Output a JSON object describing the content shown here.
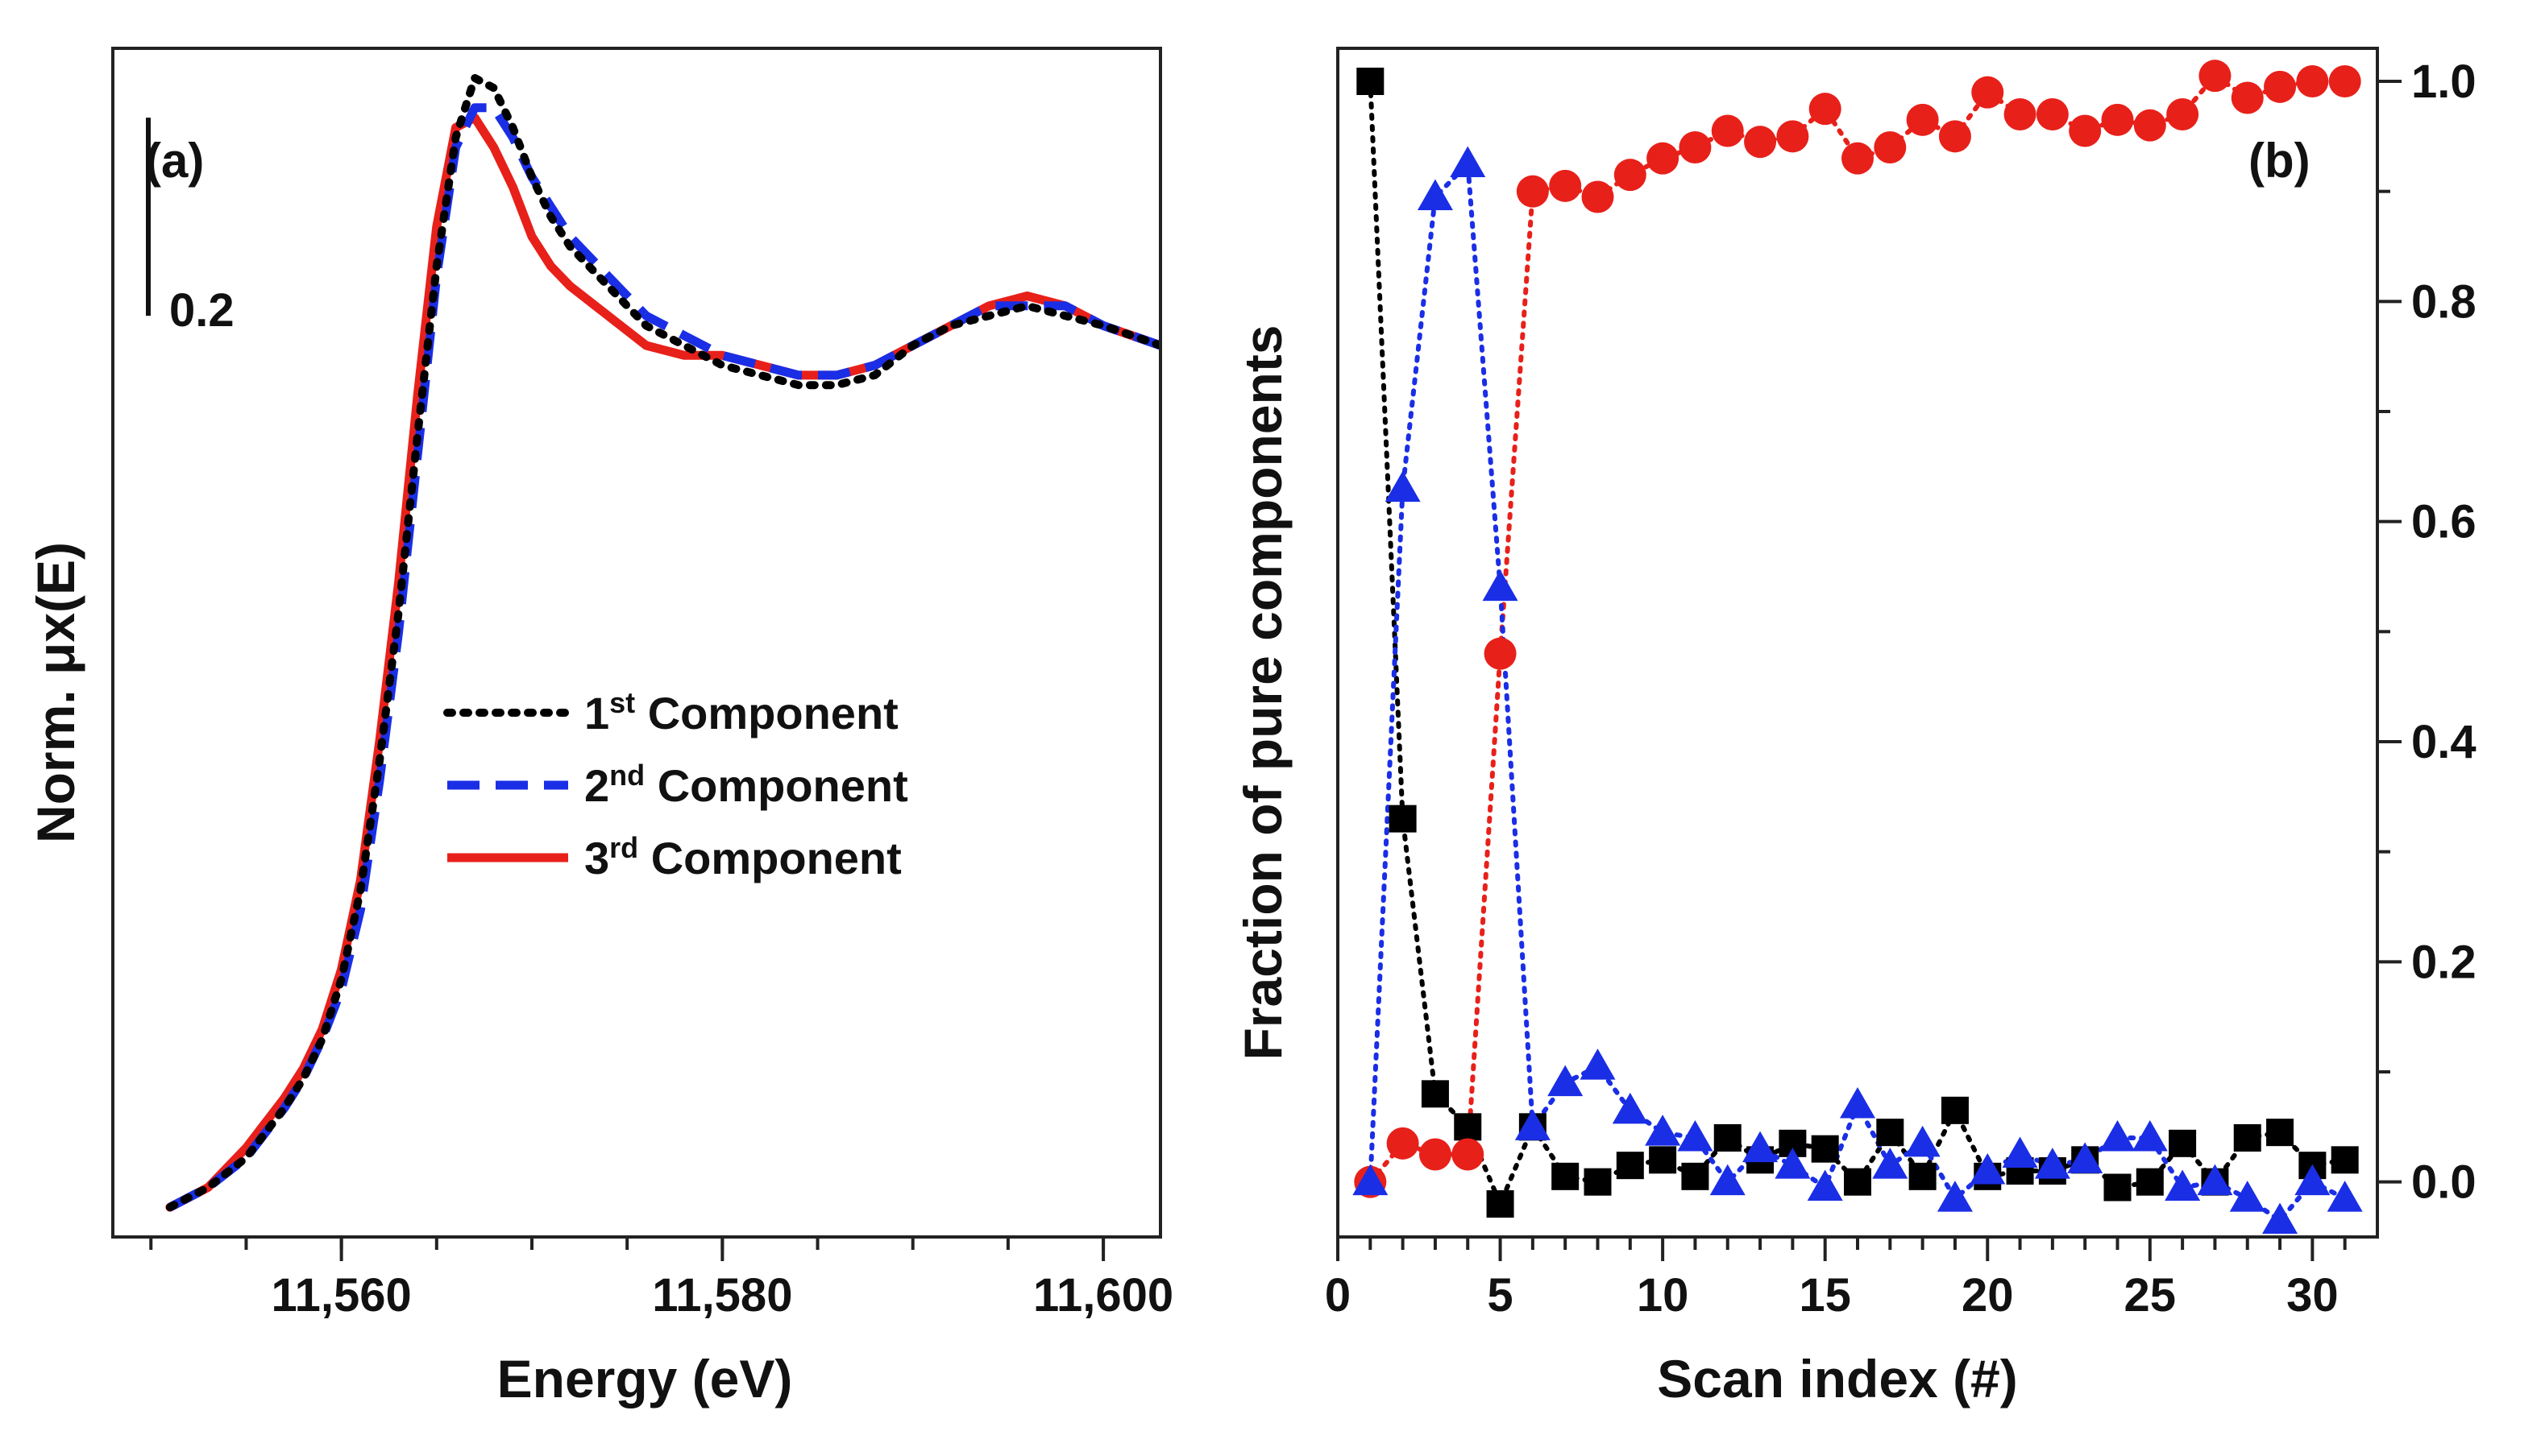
{
  "chart_data": [
    {
      "type": "line",
      "panel_label": "(a)",
      "xlabel": "Energy (eV)",
      "ylabel": "Norm. μx(E)",
      "xlim": [
        11548,
        11603
      ],
      "ylim": [
        -0.03,
        1.17
      ],
      "x_ticks": [
        11560,
        11580,
        11600
      ],
      "x_tick_labels": [
        "11,560",
        "11,580",
        "11,600"
      ],
      "y_ticks_shown": false,
      "scale_bar": {
        "label": "0.2",
        "length": 0.2,
        "from": 0.9,
        "to": 1.1
      },
      "legend_position": "center-right",
      "series": [
        {
          "name": "1st Component",
          "name_base": "1",
          "name_sup": "st",
          "name_rest": " Component",
          "color": "#000000",
          "style": "dotted",
          "x": [
            11551,
            11553,
            11555,
            11557,
            11558,
            11559,
            11560,
            11561,
            11562,
            11563,
            11564,
            11565,
            11566,
            11567,
            11568,
            11569,
            11570,
            11571,
            11572,
            11574,
            11576,
            11578,
            11580,
            11582,
            11584,
            11586,
            11588,
            11590,
            11592,
            11594,
            11596,
            11598,
            11600,
            11603
          ],
          "y": [
            0.0,
            0.02,
            0.05,
            0.1,
            0.13,
            0.17,
            0.23,
            0.32,
            0.45,
            0.6,
            0.78,
            0.95,
            1.08,
            1.14,
            1.13,
            1.09,
            1.04,
            1.0,
            0.97,
            0.93,
            0.89,
            0.87,
            0.85,
            0.84,
            0.83,
            0.83,
            0.84,
            0.87,
            0.89,
            0.9,
            0.91,
            0.9,
            0.89,
            0.87
          ]
        },
        {
          "name": "2nd Component",
          "name_base": "2",
          "name_sup": "nd",
          "name_rest": " Component",
          "color": "#1a2ee6",
          "style": "dashed",
          "x": [
            11551,
            11553,
            11555,
            11557,
            11558,
            11559,
            11560,
            11561,
            11562,
            11563,
            11564,
            11565,
            11566,
            11567,
            11568,
            11569,
            11570,
            11571,
            11572,
            11574,
            11576,
            11578,
            11580,
            11582,
            11584,
            11586,
            11588,
            11590,
            11592,
            11594,
            11596,
            11598,
            11600,
            11603
          ],
          "y": [
            0.0,
            0.02,
            0.05,
            0.1,
            0.13,
            0.17,
            0.22,
            0.3,
            0.43,
            0.58,
            0.76,
            0.94,
            1.07,
            1.11,
            1.11,
            1.08,
            1.04,
            1.01,
            0.98,
            0.94,
            0.9,
            0.88,
            0.86,
            0.85,
            0.84,
            0.84,
            0.85,
            0.87,
            0.89,
            0.91,
            0.91,
            0.91,
            0.89,
            0.87
          ]
        },
        {
          "name": "3rd Component",
          "name_base": "3",
          "name_sup": "rd",
          "name_rest": " Component",
          "color": "#e8201a",
          "style": "solid",
          "x": [
            11551,
            11553,
            11555,
            11557,
            11558,
            11559,
            11560,
            11561,
            11562,
            11563,
            11564,
            11565,
            11566,
            11567,
            11568,
            11569,
            11570,
            11571,
            11572,
            11574,
            11576,
            11578,
            11580,
            11582,
            11584,
            11586,
            11588,
            11590,
            11592,
            11594,
            11596,
            11598,
            11600,
            11603
          ],
          "y": [
            0.0,
            0.02,
            0.06,
            0.11,
            0.14,
            0.18,
            0.24,
            0.33,
            0.47,
            0.63,
            0.82,
            0.99,
            1.09,
            1.1,
            1.07,
            1.03,
            0.98,
            0.95,
            0.93,
            0.9,
            0.87,
            0.86,
            0.86,
            0.85,
            0.84,
            0.84,
            0.85,
            0.87,
            0.89,
            0.91,
            0.92,
            0.91,
            0.89,
            0.87
          ]
        }
      ]
    },
    {
      "type": "scatter",
      "panel_label": "(b)",
      "xlabel": "Scan index (#)",
      "ylabel": "Fraction of pure components",
      "xlim": [
        0,
        32
      ],
      "ylim": [
        -0.05,
        1.03
      ],
      "x_ticks": [
        0,
        5,
        10,
        15,
        20,
        25,
        30
      ],
      "y_ticks": [
        0.0,
        0.2,
        0.4,
        0.6,
        0.8,
        1.0
      ],
      "y_tick_labels": [
        "0.0",
        "0.2",
        "0.4",
        "0.6",
        "0.8",
        "1.0"
      ],
      "y_axis_side": "right",
      "connector": "dotted",
      "series": [
        {
          "marker": "square",
          "color": "#000000",
          "x": [
            1,
            2,
            3,
            4,
            5,
            6,
            7,
            8,
            9,
            10,
            11,
            12,
            13,
            14,
            15,
            16,
            17,
            18,
            19,
            20,
            21,
            22,
            23,
            24,
            25,
            26,
            27,
            28,
            29,
            30,
            31
          ],
          "y": [
            1.0,
            0.33,
            0.08,
            0.05,
            -0.02,
            0.05,
            0.005,
            0.0,
            0.015,
            0.02,
            0.005,
            0.04,
            0.02,
            0.035,
            0.03,
            0.0,
            0.045,
            0.005,
            0.065,
            0.005,
            0.01,
            0.01,
            0.02,
            -0.005,
            0.0,
            0.035,
            0.0,
            0.04,
            0.045,
            0.015,
            0.02
          ]
        },
        {
          "marker": "circle",
          "color": "#e8201a",
          "x": [
            1,
            2,
            3,
            4,
            5,
            6,
            7,
            8,
            9,
            10,
            11,
            12,
            13,
            14,
            15,
            16,
            17,
            18,
            19,
            20,
            21,
            22,
            23,
            24,
            25,
            26,
            27,
            28,
            29,
            30,
            31
          ],
          "y": [
            0.0,
            0.035,
            0.025,
            0.025,
            0.48,
            0.9,
            0.905,
            0.895,
            0.915,
            0.93,
            0.94,
            0.955,
            0.945,
            0.95,
            0.975,
            0.93,
            0.94,
            0.965,
            0.95,
            0.99,
            0.97,
            0.97,
            0.955,
            0.965,
            0.96,
            0.97,
            1.005,
            0.985,
            0.995,
            1.0,
            1.0
          ]
        },
        {
          "marker": "triangle",
          "color": "#1a2ee6",
          "x": [
            1,
            2,
            3,
            4,
            5,
            6,
            7,
            8,
            9,
            10,
            11,
            12,
            13,
            14,
            15,
            16,
            17,
            18,
            19,
            20,
            21,
            22,
            23,
            24,
            25,
            26,
            27,
            28,
            29,
            30,
            31
          ],
          "y": [
            0.0,
            0.63,
            0.895,
            0.925,
            0.54,
            0.05,
            0.09,
            0.105,
            0.065,
            0.045,
            0.04,
            0.0,
            0.03,
            0.015,
            -0.005,
            0.07,
            0.015,
            0.035,
            -0.015,
            0.01,
            0.025,
            0.015,
            0.02,
            0.04,
            0.04,
            -0.005,
            0.0,
            -0.015,
            -0.035,
            0.0,
            -0.015
          ]
        }
      ]
    }
  ]
}
